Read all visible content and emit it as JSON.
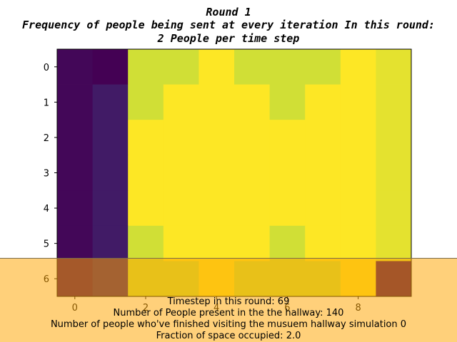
{
  "chart_data": {
    "type": "heatmap",
    "title": [
      "Round 1",
      "Frequency of people being sent at every iteration In this round:",
      "2 People per time step"
    ],
    "xlabel": "",
    "ylabel": "",
    "x_ticks": [
      0,
      2,
      4,
      6,
      8
    ],
    "y_ticks": [
      0,
      1,
      2,
      3,
      4,
      5,
      6
    ],
    "x_range": [
      -0.5,
      9.5
    ],
    "y_range": [
      -0.5,
      6.5
    ],
    "colormap": "viridis",
    "grid": false,
    "values": [
      [
        0.02,
        0.0,
        0.93,
        0.93,
        1.0,
        0.93,
        0.93,
        0.93,
        1.0,
        0.96
      ],
      [
        0.02,
        0.08,
        0.93,
        1.0,
        1.0,
        1.0,
        0.93,
        1.0,
        1.0,
        0.96
      ],
      [
        0.02,
        0.08,
        1.0,
        1.0,
        1.0,
        1.0,
        1.0,
        1.0,
        1.0,
        0.96
      ],
      [
        0.02,
        0.08,
        1.0,
        1.0,
        1.0,
        1.0,
        1.0,
        1.0,
        1.0,
        0.96
      ],
      [
        0.02,
        0.08,
        1.0,
        1.0,
        1.0,
        1.0,
        1.0,
        1.0,
        1.0,
        0.96
      ],
      [
        0.02,
        0.08,
        0.93,
        1.0,
        1.0,
        1.0,
        0.93,
        1.0,
        1.0,
        0.96
      ],
      [
        0.02,
        0.08,
        0.93,
        0.93,
        1.0,
        0.93,
        0.93,
        0.93,
        1.0,
        0.0
      ]
    ]
  },
  "info": {
    "timestep": "Timestep in this round: 69",
    "people_present": "Number of People present in the the hallway: 140",
    "people_finished": "Number of people who've finished visiting the musuem hallway simulation 0",
    "fraction": "Fraction of space occupied: 2.0"
  },
  "colors": {
    "overlay": "#ffa500",
    "heat_low": "#440154",
    "heat_high": "#fde725"
  }
}
